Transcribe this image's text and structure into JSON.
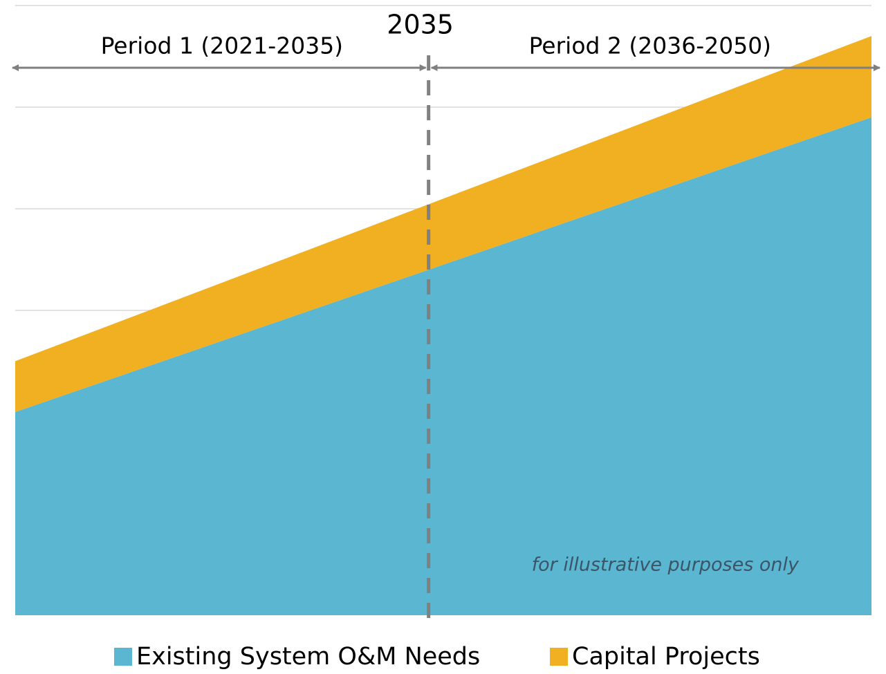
{
  "chart_data": {
    "type": "stacked_area",
    "x": [
      2021,
      2050
    ],
    "xlim": [
      2021,
      2050
    ],
    "ylim": [
      0,
      6
    ],
    "yticks": [
      3,
      4,
      5,
      6
    ],
    "grid": true,
    "series": [
      {
        "name": "Existing System O&M Needs",
        "color": "#5bb6d1",
        "values": [
          2.0,
          4.9
        ]
      },
      {
        "name": "Capital Projects",
        "color": "#f0b022",
        "values": [
          0.5,
          0.8
        ]
      }
    ],
    "vline": {
      "x": 2035
    },
    "period_labels": [
      "Period 1 (2021-2035)",
      "Period 2 (2036-2050)"
    ],
    "note": "for illustrative purposes only"
  }
}
